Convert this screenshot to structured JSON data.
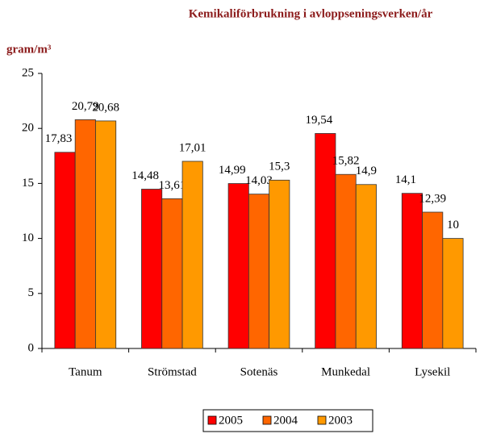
{
  "chart_data": {
    "type": "bar",
    "title": "Kemikaliförbrukning i avloppseningsverken/år",
    "y_label": "gram/m³",
    "categories": [
      "Tanum",
      "Strömstad",
      "Sotenäs",
      "Munkedal",
      "Lysekil"
    ],
    "series": [
      {
        "name": "2005",
        "color": "#ff0000",
        "values": [
          17.83,
          14.48,
          14.99,
          19.54,
          14.1
        ],
        "value_labels": [
          "17,83",
          "14,48",
          "14,99",
          "19,54",
          "14,1"
        ]
      },
      {
        "name": "2004",
        "color": "#ff6600",
        "values": [
          20.79,
          13.61,
          14.03,
          15.82,
          12.39
        ],
        "value_labels": [
          "20,79",
          "13,61",
          "14,03",
          "15,82",
          "12,39"
        ]
      },
      {
        "name": "2003",
        "color": "#ff9900",
        "values": [
          20.68,
          17.01,
          15.3,
          14.9,
          10
        ],
        "value_labels": [
          "20,68",
          "17,01",
          "15,3",
          "14,9",
          "10"
        ]
      }
    ],
    "ylim": [
      0,
      25
    ],
    "yticks": [
      0,
      5,
      10,
      15,
      20,
      25
    ],
    "grid": false,
    "legend": "bottom"
  }
}
